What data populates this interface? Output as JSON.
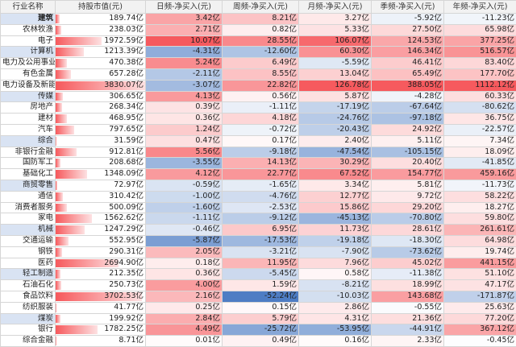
{
  "table": {
    "header": [
      "行业名称",
      "持股市值(元)",
      "日频-净买入(元)",
      "周频-净买入(元)",
      "月频-净买入(元)",
      "季频-净买入(元)",
      "年频-净买入(元)"
    ],
    "rows": [
      [
        "建筑",
        "189.74亿",
        "3.42亿",
        "8.21亿",
        "3.27亿",
        "-5.92亿",
        "-11.23亿"
      ],
      [
        "农林牧渔",
        "238.03亿",
        "2.71亿",
        "0.82亿",
        "5.33亿",
        "27.50亿",
        "65.98亿"
      ],
      [
        "电子",
        "1972.59亿",
        "10.07亿",
        "28.55亿",
        "106.07亿",
        "124.53亿",
        "377.25亿"
      ],
      [
        "计算机",
        "1213.39亿",
        "-4.31亿",
        "-12.60亿",
        "60.30亿",
        "146.34亿",
        "516.57亿"
      ],
      [
        "电力及公用事业",
        "470.38亿",
        "5.24亿",
        "6.49亿",
        "-5.59亿",
        "46.41亿",
        "83.40亿"
      ],
      [
        "有色金属",
        "657.28亿",
        "-2.11亿",
        "8.55亿",
        "13.04亿",
        "65.49亿",
        "177.70亿"
      ],
      [
        "电力设备及新能源",
        "3830.07亿",
        "-3.07亿",
        "22.82亿",
        "126.78亿",
        "388.05亿",
        "1112.12亿"
      ],
      [
        "传媒",
        "306.65亿",
        "4.13亿",
        "0.56亿",
        "5.87亿",
        "-4.28亿",
        "60.33亿"
      ],
      [
        "房地产",
        "268.34亿",
        "0.39亿",
        "-1.11亿",
        "-17.19亿",
        "-67.64亿",
        "-80.62亿"
      ],
      [
        "建材",
        "468.95亿",
        "0.36亿",
        "4.18亿",
        "-24.76亿",
        "-97.18亿",
        "36.75亿"
      ],
      [
        "汽车",
        "797.65亿",
        "1.24亿",
        "-0.72亿",
        "-20.43亿",
        "24.92亿",
        "-22.57亿"
      ],
      [
        "综合",
        "31.59亿",
        "0.47亿",
        "0.17亿",
        "2.40亿",
        "5.11亿",
        "7.34亿"
      ],
      [
        "非银行金融",
        "912.81亿",
        "5.56亿",
        "-9.18亿",
        "-47.54亿",
        "-105.15亿",
        "18.09亿"
      ],
      [
        "国防军工",
        "208.68亿",
        "-3.55亿",
        "14.13亿",
        "30.29亿",
        "20.40亿",
        "-41.85亿"
      ],
      [
        "基础化工",
        "1348.09亿",
        "4.12亿",
        "22.77亿",
        "67.52亿",
        "154.77亿",
        "459.16亿"
      ],
      [
        "商贸零售",
        "72.97亿",
        "-0.59亿",
        "-1.65亿",
        "3.34亿",
        "5.81亿",
        "-11.73亿"
      ],
      [
        "通信",
        "310.42亿",
        "-1.00亿",
        "-4.76亿",
        "12.77亿",
        "9.72亿",
        "58.22亿"
      ],
      [
        "消费者服务",
        "500.09亿",
        "-1.60亿",
        "-2.53亿",
        "15.86亿",
        "29.20亿",
        "18.27亿"
      ],
      [
        "家电",
        "1562.62亿",
        "-1.11亿",
        "-9.12亿",
        "-45.13亿",
        "-70.80亿",
        "59.80亿"
      ],
      [
        "机械",
        "1247.29亿",
        "-0.46亿",
        "6.95亿",
        "11.73亿",
        "28.61亿",
        "261.61亿"
      ],
      [
        "交通运输",
        "552.95亿",
        "-5.87亿",
        "-17.53亿",
        "-19.18亿",
        "-18.30亿",
        "64.98亿"
      ],
      [
        "钢铁",
        "290.31亿",
        "2.05亿",
        "-3.21亿",
        "-7.90亿",
        "-73.62亿",
        "19.74亿"
      ],
      [
        "医药",
        "2694.90亿",
        "0.18亿",
        "11.95亿",
        "7.96亿",
        "45.02亿",
        "441.15亿"
      ],
      [
        "轻工制造",
        "212.35亿",
        "0.36亿",
        "-5.45亿",
        "0.58亿",
        "-11.38亿",
        "51.10亿"
      ],
      [
        "石油石化",
        "250.73亿",
        "4.00亿",
        "1.59亿",
        "-8.21亿",
        "18.99亿",
        "47.17亿"
      ],
      [
        "食品饮料",
        "3702.53亿",
        "2.16亿",
        "-52.24亿",
        "-10.03亿",
        "143.68亿",
        "-171.87亿"
      ],
      [
        "纺织服装",
        "41.77亿",
        "0.25亿",
        "0.15亿",
        "2.86亿",
        "-0.55亿",
        "25.63亿"
      ],
      [
        "煤炭",
        "199.92亿",
        "2.84亿",
        "5.79亿",
        "4.31亿",
        "21.36亿",
        "77.20亿"
      ],
      [
        "银行",
        "1782.25亿",
        "4.49亿",
        "-25.72亿",
        "-53.95亿",
        "-44.91亿",
        "367.12亿"
      ],
      [
        "综合金融",
        "8.71亿",
        "0.01亿",
        "0.49亿",
        "0.16亿",
        "2.33亿",
        "-0.45亿"
      ]
    ]
  }
}
